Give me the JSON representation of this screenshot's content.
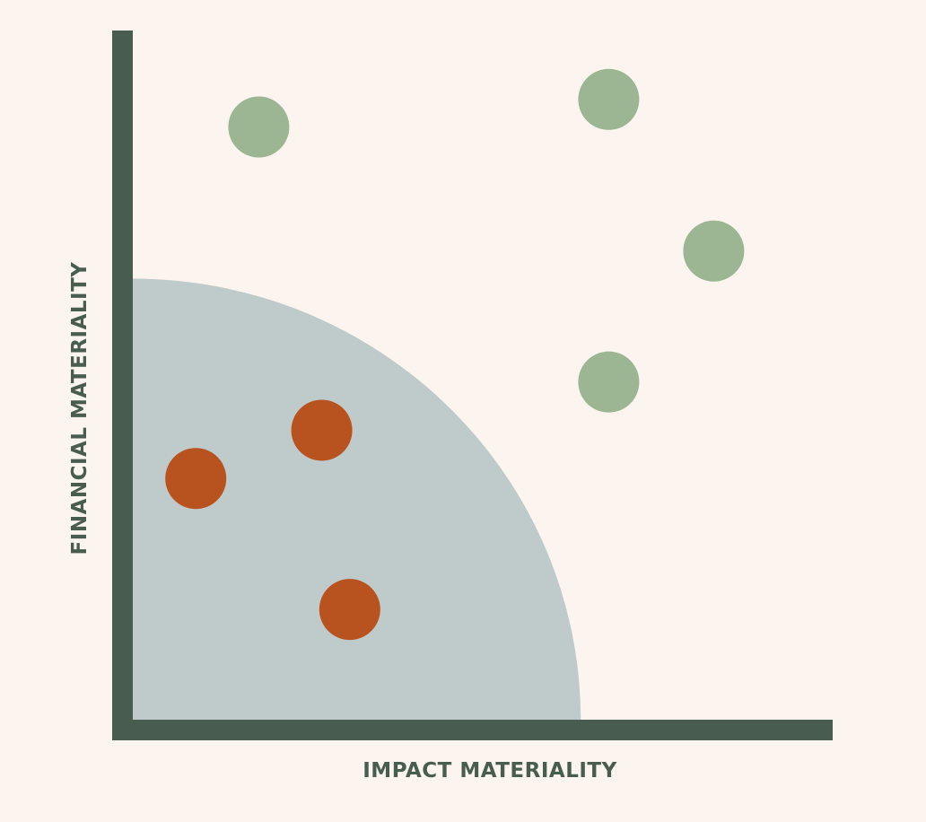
{
  "chart_data": {
    "type": "scatter",
    "xlabel": "IMPACT MATERIALITY",
    "ylabel": "FINANCIAL MATERIALITY",
    "xlim": [
      0,
      100
    ],
    "ylim": [
      0,
      100
    ],
    "grid": false,
    "threshold_region": {
      "shape": "quarter-circle",
      "radius": 64
    },
    "series": [
      {
        "color": "#b8531f",
        "points": [
          {
            "x": 9,
            "y": 35
          },
          {
            "x": 27,
            "y": 42
          },
          {
            "x": 31,
            "y": 16
          }
        ]
      },
      {
        "color": "#9cb593",
        "points": [
          {
            "x": 18,
            "y": 86
          },
          {
            "x": 68,
            "y": 90
          },
          {
            "x": 83,
            "y": 68
          },
          {
            "x": 68,
            "y": 49
          }
        ]
      }
    ]
  },
  "colors": {
    "background": "#fcf5ef",
    "axis": "#485c4f",
    "threshold_region": "#bfcacb",
    "label": "#485c4f"
  }
}
